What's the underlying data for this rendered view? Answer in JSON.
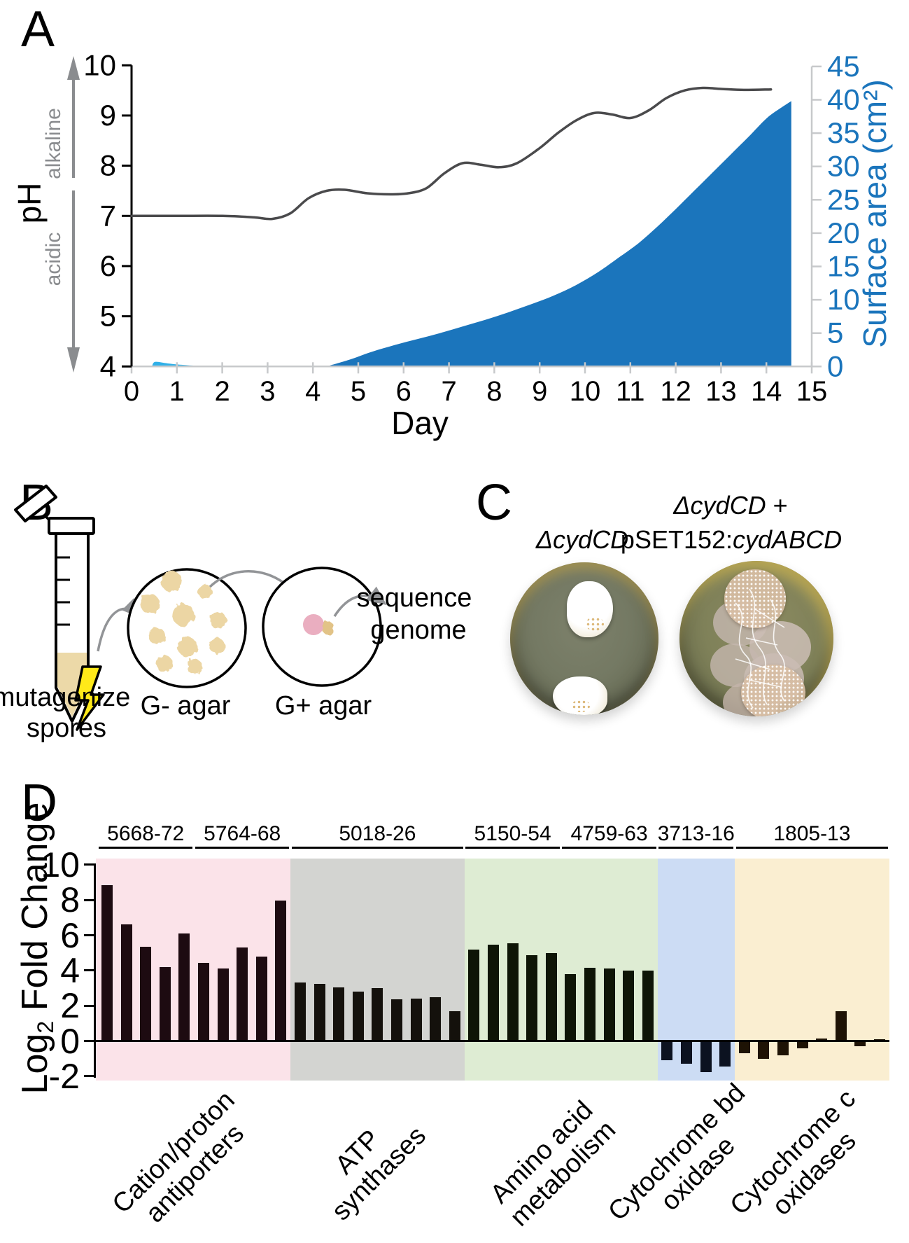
{
  "panels": {
    "a": "A",
    "b": "B",
    "c": "C",
    "d": "D"
  },
  "colors": {
    "surface_area_fill": "#1b75bc",
    "early_area_fill": "#2fb0e8",
    "ph_line": "#4a4a4c",
    "axis_gray": "#c7c9cb",
    "annotation_gray": "#8a8c8f",
    "diagram_arrow": "#929497",
    "spore_tan": "#ecd6a4",
    "colony_pink": "#eaaec0",
    "lightning_yellow": "#ffe919"
  },
  "chart_data": [
    {
      "id": "ph-and-surface-area-over-time",
      "type": "line+area",
      "xlabel": "Day",
      "xlim": [
        0,
        15
      ],
      "x_ticks": [
        0,
        1,
        2,
        3,
        4,
        5,
        6,
        7,
        8,
        9,
        10,
        11,
        12,
        13,
        14,
        15
      ],
      "left_axis": {
        "label": "pH",
        "lim": [
          4,
          10
        ],
        "ticks": [
          4,
          5,
          6,
          7,
          8,
          9,
          10
        ],
        "annotation_up": "alkaline",
        "annotation_down": "acidic"
      },
      "right_axis": {
        "label": "Surface area (cm²)",
        "lim": [
          0,
          45
        ],
        "ticks": [
          0,
          5,
          10,
          15,
          20,
          25,
          30,
          35,
          40,
          45
        ],
        "color": "#1b75bc"
      },
      "series": [
        {
          "name": "pH",
          "axis": "left",
          "type": "line",
          "color": "#4a4a4c",
          "x": [
            0,
            1,
            2,
            2.7,
            3.1,
            3.5,
            3.9,
            4.3,
            4.7,
            5.2,
            5.7,
            6.1,
            6.5,
            6.9,
            7.3,
            7.7,
            8.1,
            8.5,
            9.0,
            9.4,
            9.8,
            10.2,
            10.6,
            11.0,
            11.4,
            11.8,
            12.2,
            12.6,
            13.0,
            13.5,
            14.1
          ],
          "y": [
            7.0,
            7.0,
            7.0,
            6.97,
            6.94,
            7.05,
            7.35,
            7.5,
            7.52,
            7.45,
            7.43,
            7.45,
            7.55,
            7.85,
            8.05,
            8.02,
            7.97,
            8.05,
            8.35,
            8.65,
            8.9,
            9.05,
            9.02,
            8.95,
            9.1,
            9.35,
            9.5,
            9.55,
            9.53,
            9.51,
            9.52
          ]
        },
        {
          "name": "surface area",
          "axis": "right",
          "type": "area",
          "color": "#1b75bc",
          "x": [
            4.3,
            4.8,
            5.3,
            5.8,
            6.3,
            6.8,
            7.3,
            7.8,
            8.3,
            8.8,
            9.3,
            9.8,
            10.3,
            10.8,
            11.2,
            11.6,
            12.0,
            12.4,
            12.8,
            13.2,
            13.6,
            14.0,
            14.3,
            14.55
          ],
          "y": [
            0,
            1.0,
            2.2,
            3.2,
            4.1,
            5.0,
            6.0,
            7.0,
            8.1,
            9.3,
            10.6,
            12.2,
            14.2,
            16.6,
            18.6,
            21.0,
            23.6,
            26.3,
            29.0,
            31.7,
            34.4,
            37.2,
            38.7,
            39.8
          ]
        },
        {
          "name": "surface area (early)",
          "axis": "right",
          "type": "area",
          "color": "#2fb0e8",
          "x": [
            0.45,
            0.52,
            0.8,
            1.1,
            1.45,
            1.75
          ],
          "y": [
            0,
            0.68,
            0.45,
            0.25,
            0.1,
            0
          ]
        }
      ]
    },
    {
      "id": "log2-fold-change-bars",
      "type": "bar",
      "ylabel_parts": [
        {
          "t": "Log"
        },
        {
          "t": "2",
          "sub": true
        },
        {
          "t": " Fold Change"
        }
      ],
      "ylim": [
        -2,
        10
      ],
      "y_ticks": [
        10,
        8,
        6,
        4,
        2,
        0,
        -2
      ],
      "groups": [
        {
          "band_color": "#fbe3e9",
          "bar_color": "#1d0b11",
          "category_lines": [
            [
              {
                "t": "Cation/proton"
              }
            ],
            [
              {
                "t": "antiporters"
              }
            ]
          ],
          "loci": [
            {
              "label": "5668-72",
              "values": [
                8.85,
                6.6,
                5.35,
                4.2,
                6.1
              ]
            },
            {
              "label": "5764-68",
              "values": [
                4.45,
                4.1,
                5.3,
                4.8,
                7.95
              ]
            }
          ]
        },
        {
          "band_color": "#d3d4d1",
          "bar_color": "#14110c",
          "category_lines": [
            [
              {
                "t": "ATP"
              }
            ],
            [
              {
                "t": "synthases"
              }
            ]
          ],
          "loci": [
            {
              "label": "5018-26",
              "values": [
                3.3,
                3.25,
                3.05,
                2.8,
                3.0,
                2.35,
                2.4,
                2.5,
                1.7
              ]
            }
          ]
        },
        {
          "band_color": "#deecd3",
          "bar_color": "#0e1506",
          "category_lines": [
            [
              {
                "t": "Amino acid"
              }
            ],
            [
              {
                "t": "metabolism"
              }
            ]
          ],
          "loci": [
            {
              "label": "5150-54",
              "values": [
                5.2,
                5.45,
                5.55,
                4.85,
                5.0
              ]
            },
            {
              "label": "4759-63",
              "values": [
                3.8,
                4.15,
                4.1,
                4.0,
                4.0
              ]
            }
          ]
        },
        {
          "band_color": "#ccdcf4",
          "bar_color": "#0c1220",
          "category_lines": [
            [
              {
                "t": "Cytochrome "
              },
              {
                "t": "bd",
                "i": true
              }
            ],
            [
              {
                "t": "oxidase"
              }
            ]
          ],
          "loci": [
            {
              "label": "3713-16",
              "values": [
                -1.1,
                -1.3,
                -1.75,
                -1.45
              ]
            }
          ]
        },
        {
          "band_color": "#faeed1",
          "bar_color": "#1e1305",
          "category_lines": [
            [
              {
                "t": "Cytochrome "
              },
              {
                "t": "c",
                "i": true
              }
            ],
            [
              {
                "t": "oxidases"
              }
            ]
          ],
          "loci": [
            {
              "label": "1805-13",
              "values": [
                -0.7,
                -1.0,
                -0.8,
                -0.4,
                0.15,
                1.7,
                -0.3,
                0.12
              ]
            }
          ]
        }
      ]
    }
  ],
  "panel_b": {
    "labels": {
      "mutagenize": "mutagenize",
      "spores": "spores",
      "g_minus": "G- agar",
      "g_plus": "G+ agar",
      "sequence": "sequence",
      "genome": "genome"
    }
  },
  "panel_c": {
    "left_label_parts": [
      {
        "t": "ΔcydCD",
        "i": true
      }
    ],
    "right_label_line1_parts": [
      {
        "t": "ΔcydCD",
        "i": true
      },
      {
        "t": " +",
        "i": false
      }
    ],
    "right_label_line2_parts": [
      {
        "t": "pSET152:",
        "i": false
      },
      {
        "t": "cydABCD",
        "i": true
      }
    ]
  }
}
